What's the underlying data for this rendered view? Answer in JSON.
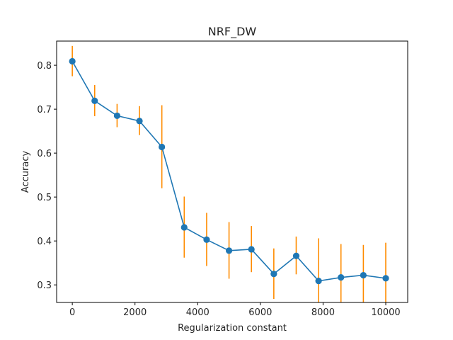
{
  "chart_data": {
    "type": "line",
    "title": "NRF_DW",
    "xlabel": "Regularization constant",
    "ylabel": "Accuracy",
    "xlim": [
      -500,
      10700
    ],
    "ylim": [
      0.26,
      0.855
    ],
    "x_ticks": [
      0,
      2000,
      4000,
      6000,
      8000,
      10000
    ],
    "y_ticks": [
      0.3,
      0.4,
      0.5,
      0.6,
      0.7,
      0.8
    ],
    "y_tick_labels": [
      "0.3",
      "0.4",
      "0.5",
      "0.6",
      "0.7",
      "0.8"
    ],
    "grid": false,
    "line_color": "#1f77b4",
    "errorbar_color": "#ff8c00",
    "series": [
      {
        "x": [
          0,
          714,
          1429,
          2143,
          2857,
          3571,
          4286,
          5000,
          5714,
          6429,
          7143,
          7857,
          8571,
          9286,
          10000
        ],
        "y": [
          0.809,
          0.719,
          0.685,
          0.673,
          0.614,
          0.431,
          0.403,
          0.378,
          0.381,
          0.325,
          0.366,
          0.309,
          0.317,
          0.322,
          0.315
        ],
        "err_low": [
          0.775,
          0.684,
          0.659,
          0.641,
          0.52,
          0.362,
          0.343,
          0.314,
          0.329,
          0.268,
          0.324,
          0.255,
          0.255,
          0.255,
          0.255
        ],
        "err_high": [
          0.844,
          0.755,
          0.712,
          0.707,
          0.709,
          0.501,
          0.464,
          0.443,
          0.434,
          0.383,
          0.41,
          0.406,
          0.393,
          0.391,
          0.396
        ]
      }
    ]
  }
}
